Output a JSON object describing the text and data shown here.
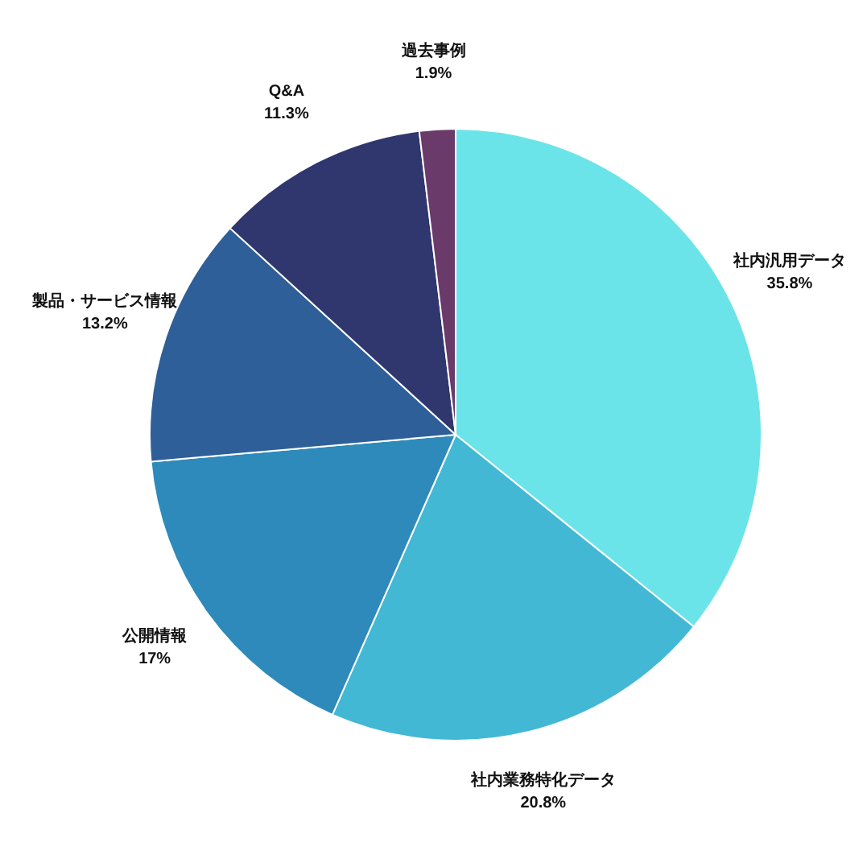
{
  "chart_data": {
    "type": "pie",
    "categories": [
      "社内汎用データ",
      "社内業務特化データ",
      "公開情報",
      "製品・サービス情報",
      "Q&A",
      "過去事例"
    ],
    "values": [
      35.8,
      20.8,
      17,
      13.2,
      11.3,
      1.9
    ],
    "value_labels": [
      "35.8%",
      "20.8%",
      "17%",
      "13.2%",
      "11.3%",
      "1.9%"
    ],
    "colors": [
      "#6ae4e8",
      "#42b8d5",
      "#2e8aba",
      "#2e5f99",
      "#30366e",
      "#6a3a6a"
    ],
    "legend": false
  }
}
